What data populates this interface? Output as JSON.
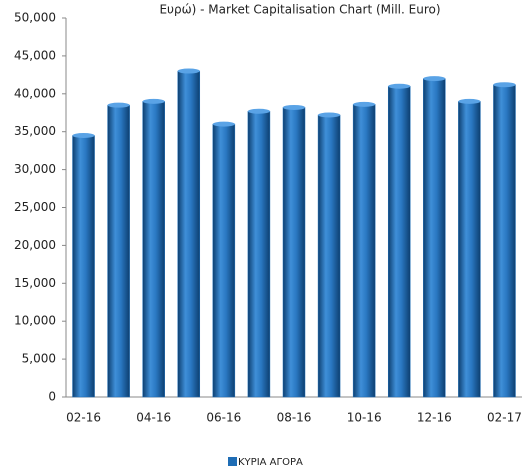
{
  "chart_data": {
    "type": "bar",
    "title": "Ευρώ) - Market Capitalisation Chart (Mill. Euro)",
    "categories": [
      "02-16",
      null,
      "04-16",
      null,
      "06-16",
      null,
      "08-16",
      null,
      "10-16",
      null,
      "12-16",
      null,
      "02-17"
    ],
    "series": [
      {
        "name": "ΚΥΡΙΑ ΑΓΟΡΑ",
        "color": "#1f6db5",
        "values": [
          34500,
          38500,
          39000,
          43000,
          36000,
          37700,
          38200,
          37200,
          38600,
          41000,
          42000,
          39000,
          41200
        ]
      }
    ],
    "ylim": [
      0,
      50000
    ],
    "yticks": [
      0,
      {
        "value": 5000,
        "label": "5,000"
      },
      {
        "value": 10000,
        "label": "10,000"
      },
      {
        "value": 15000,
        "label": "15,000"
      },
      {
        "value": 20000,
        "label": "20,000"
      },
      {
        "value": 25000,
        "label": "25,000"
      },
      {
        "value": 30000,
        "label": "30,000"
      },
      {
        "value": 35000,
        "label": "35,000"
      },
      {
        "value": 40000,
        "label": "40,000"
      },
      {
        "value": 45000,
        "label": "45,000"
      },
      {
        "value": 50000,
        "label": "50,000"
      }
    ],
    "grid": false,
    "legend": "bottom"
  }
}
